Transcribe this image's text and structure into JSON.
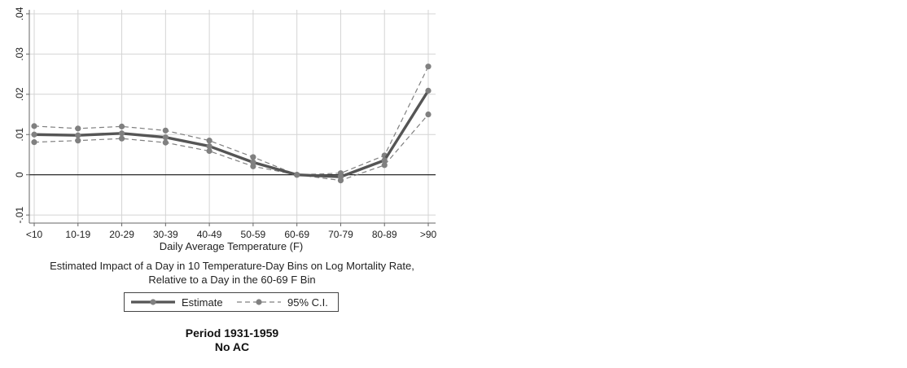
{
  "chart_data": {
    "type": "line",
    "categories": [
      "<10",
      "10-19",
      "20-29",
      "30-39",
      "40-49",
      "50-59",
      "60-69",
      "70-79",
      "80-89",
      ">90"
    ],
    "series": [
      {
        "name": "Estimate",
        "values": [
          0.01,
          0.0098,
          0.0103,
          0.0093,
          0.0071,
          0.0031,
          0.0,
          -0.0005,
          0.0036,
          0.0209
        ]
      },
      {
        "name": "95% C.I.",
        "values": [
          0.0121,
          0.0115,
          0.012,
          0.011,
          0.0085,
          0.0044,
          0.0,
          0.0004,
          0.0048,
          0.0269
        ]
      },
      {
        "name": "95% C.I.",
        "values": [
          0.0081,
          0.0085,
          0.009,
          0.008,
          0.0059,
          0.0021,
          0.0,
          -0.0014,
          0.0024,
          0.015
        ]
      }
    ],
    "yticks": [
      -0.01,
      0,
      0.01,
      0.02,
      0.03,
      0.04
    ],
    "ytick_labels": [
      "-.01",
      "0",
      ".01",
      ".02",
      ".03",
      ".04"
    ],
    "ylim": [
      -0.012,
      0.041
    ],
    "xlabel": "Daily Average Temperature (F)",
    "ylabel": "",
    "grid": true,
    "reference_line": 0,
    "colors": {
      "estimate": "#555555",
      "ci": "#808080",
      "grid": "#d4d4d4",
      "axis": "#666666"
    }
  },
  "note": {
    "line1": "Estimated Impact of a Day in 10 Temperature-Day Bins on Log Mortality Rate,",
    "line2": "Relative to a Day in the 60-69 F Bin"
  },
  "legend": {
    "estimate_label": "Estimate",
    "ci_label": "95% C.I.",
    "position": "bottom"
  },
  "panel": {
    "title_line1": "Period 1931-1959",
    "title_line2": "No AC"
  }
}
